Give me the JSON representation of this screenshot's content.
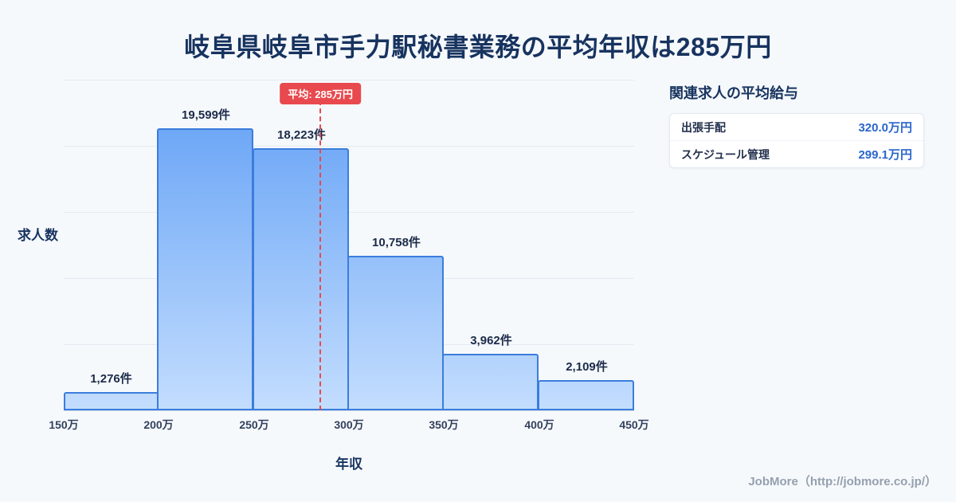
{
  "title": "岐阜県岐阜市手力駅秘書業務の平均年収は285万円",
  "chart_data": {
    "type": "bar",
    "subtype": "histogram",
    "title": "岐阜県岐阜市手力駅秘書業務の平均年収は285万円",
    "xlabel": "年収",
    "ylabel": "求人数",
    "x_ticks": [
      "150万",
      "200万",
      "250万",
      "300万",
      "350万",
      "400万",
      "450万"
    ],
    "x_domain": [
      150,
      450
    ],
    "bins": [
      "150万-200万",
      "200万-250万",
      "250万-300万",
      "300万-350万",
      "350万-400万",
      "400万-450万"
    ],
    "values": [
      1276,
      19599,
      18223,
      10758,
      3962,
      2109
    ],
    "bar_labels": [
      "1,276件",
      "19,599件",
      "18,223件",
      "10,758件",
      "3,962件",
      "2,109件"
    ],
    "ylim": [
      0,
      23000
    ],
    "grid": true,
    "legend": false,
    "average_line": {
      "value": 285,
      "x_domain": [
        150,
        450
      ],
      "label": "平均: 285万円",
      "color": "#e8494e",
      "style": "dashed"
    }
  },
  "side_panel": {
    "heading": "関連求人の平均給与",
    "rows": [
      {
        "label": "出張手配",
        "value": "320.0万円"
      },
      {
        "label": "スケジュール管理",
        "value": "299.1万円"
      }
    ]
  },
  "footer": {
    "credit": "JobMore（http://jobmore.co.jp/）"
  },
  "colors": {
    "background": "#f6f9fc",
    "title": "#17335f",
    "bar_top": "#5f9ef5",
    "bar_bottom": "#c3ddfe",
    "bar_border": "#3b7ddd",
    "label_dark": "#1c2b4a",
    "tick": "#33415e",
    "grid": "#e4eaf3",
    "axis": "#d2dbe8",
    "accent_red": "#e8494e",
    "value_blue": "#2a66cc",
    "muted": "#95a0ae",
    "card_border": "#e2e8f2"
  }
}
